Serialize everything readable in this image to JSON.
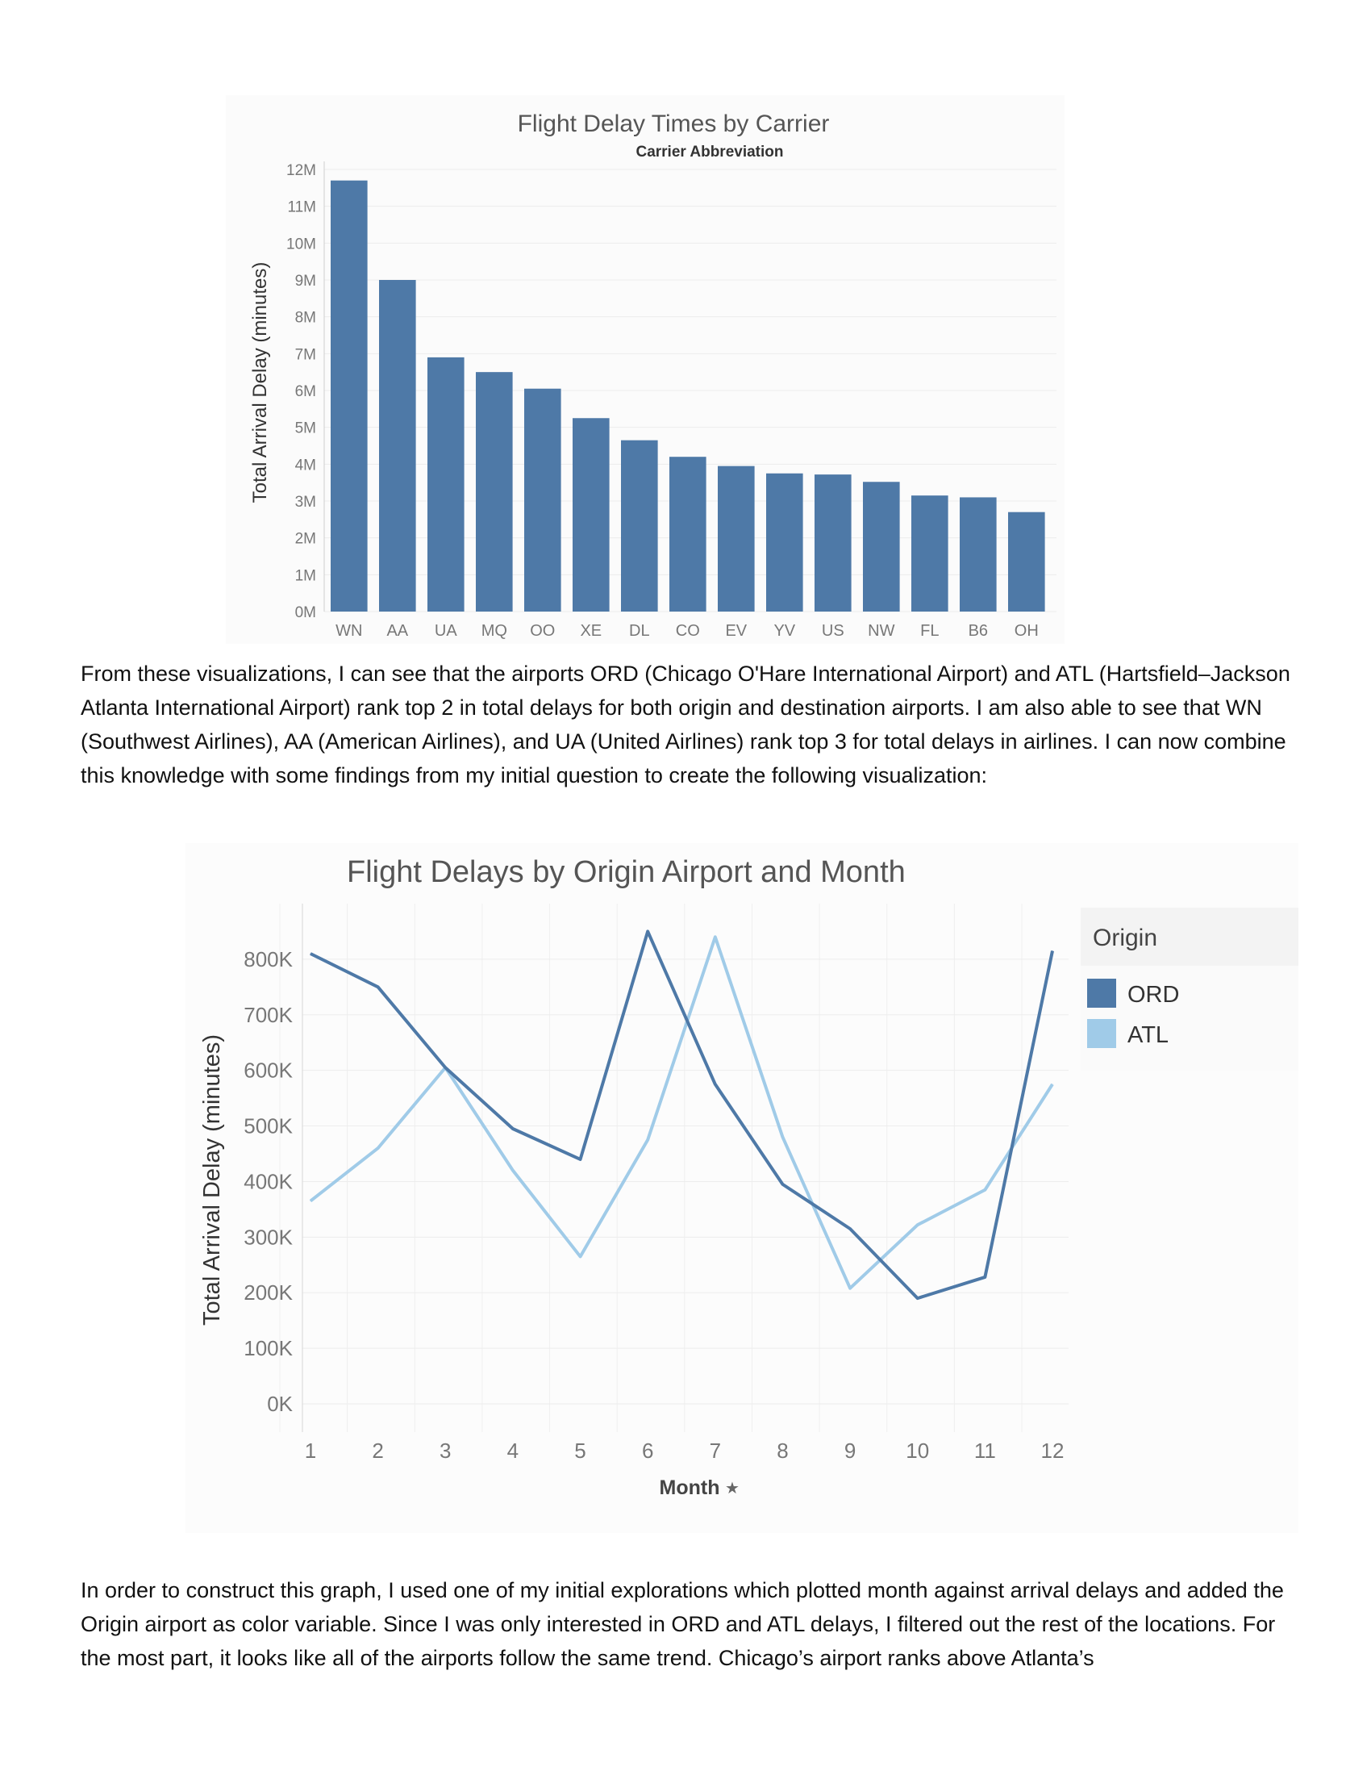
{
  "charts": [
    {
      "type": "bar",
      "title": "Flight Delay Times by Carrier",
      "subtitle": "Carrier Abbreviation",
      "ylabel": "Total Arrival Delay (minutes)",
      "xlabel": "",
      "yticks": [
        "0M",
        "1M",
        "2M",
        "3M",
        "4M",
        "5M",
        "6M",
        "7M",
        "8M",
        "9M",
        "10M",
        "11M",
        "12M"
      ],
      "categories": [
        "WN",
        "AA",
        "UA",
        "MQ",
        "OO",
        "XE",
        "DL",
        "CO",
        "EV",
        "YV",
        "US",
        "NW",
        "FL",
        "B6",
        "OH"
      ],
      "values": [
        11.7,
        9.0,
        6.9,
        6.5,
        6.05,
        5.25,
        4.65,
        4.2,
        3.95,
        3.75,
        3.72,
        3.52,
        3.15,
        3.1,
        2.7
      ],
      "unit": "M",
      "ylim": [
        0,
        12
      ],
      "color": "#4e79a7",
      "grid": true
    },
    {
      "type": "line",
      "title": "Flight Delays by Origin Airport and Month",
      "ylabel": "Total Arrival Delay (minutes)",
      "xlabel": "Month",
      "xlabel_icon": "pin-icon",
      "x": [
        1,
        2,
        3,
        4,
        5,
        6,
        7,
        8,
        9,
        10,
        11,
        12
      ],
      "yticks": [
        "0K",
        "100K",
        "200K",
        "300K",
        "400K",
        "500K",
        "600K",
        "700K",
        "800K"
      ],
      "ylim": [
        0,
        900
      ],
      "unit": "K",
      "legend": {
        "title": "Origin",
        "position": "right"
      },
      "series": [
        {
          "name": "ORD",
          "color": "#4e79a7",
          "values": [
            810,
            750,
            605,
            495,
            440,
            850,
            575,
            395,
            315,
            190,
            228,
            815
          ]
        },
        {
          "name": "ATL",
          "color": "#a0cbe8",
          "values": [
            365,
            460,
            605,
            420,
            265,
            475,
            840,
            480,
            208,
            322,
            385,
            575
          ]
        }
      ],
      "grid": true
    }
  ],
  "paragraphs": [
    "From these visualizations, I can see that the airports ORD (Chicago O'Hare International Airport) and ATL (Hartsfield–Jackson Atlanta International Airport) rank top 2 in total delays for both origin and destination airports. I am also able to see that WN (Southwest Airlines), AA (American Airlines), and UA (United Airlines) rank top 3 for total delays in airlines. I can now combine this knowledge with some findings from my initial question to create the following visualization:",
    "In order to construct this graph, I used one of my initial explorations which plotted month against arrival delays and added the Origin airport as color variable. Since I was only interested in ORD and ATL delays, I filtered out the rest of the locations. For the most part, it looks like all of the airports follow the same trend. Chicago’s airport ranks above Atlanta’s"
  ]
}
